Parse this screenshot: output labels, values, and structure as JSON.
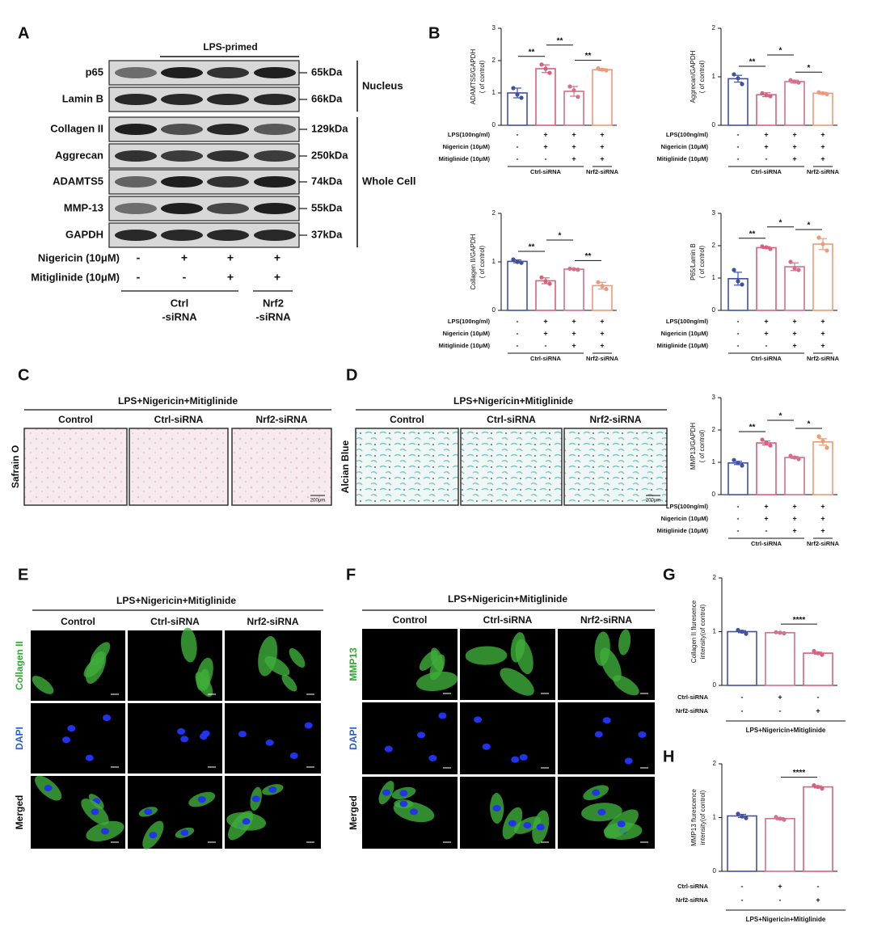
{
  "panel_labels": [
    "A",
    "B",
    "C",
    "D",
    "E",
    "F",
    "G",
    "H"
  ],
  "western_blot": {
    "header": "LPS-primed",
    "proteins": [
      "p65",
      "Lamin B",
      "Collagen II",
      "Aggrecan",
      "ADAMTS5",
      "MMP-13",
      "GAPDH"
    ],
    "sizes": [
      "65kDa",
      "66kDa",
      "129kDa",
      "250kDa",
      "74kDa",
      "55kDa",
      "37kDa"
    ],
    "compartments": [
      "Nucleus",
      "Whole Cell"
    ],
    "treatments": [
      {
        "label": "Nigericin (10μM)",
        "signs": [
          "-",
          "+",
          "+",
          "+"
        ]
      },
      {
        "label": "Mitiglinide (10μM)",
        "signs": [
          "-",
          "-",
          "+",
          "+"
        ]
      }
    ],
    "groups": [
      [
        "Ctrl",
        "-siRNA"
      ],
      [
        "Nrf2",
        "-siRNA"
      ]
    ]
  },
  "staining": [
    {
      "title": "LPS+Nigericin+Mitiglinide",
      "columns": [
        "Control",
        "Ctrl-siRNA",
        "Nrf2-siRNA"
      ],
      "rows": [
        "Safrain O"
      ],
      "scale_bar": "200μm"
    },
    {
      "title": "LPS+Nigericin+Mitiglinide",
      "columns": [
        "Control",
        "Ctrl-siRNA",
        "Nrf2-siRNA"
      ],
      "rows": [
        "Alcian Blue"
      ],
      "scale_bar": "200μm"
    },
    {
      "title": "LPS+Nigericin+Mitiglinide",
      "columns": [
        "Control",
        "Ctrl-siRNA",
        "Nrf2-siRNA"
      ],
      "rows": [
        "Collagen II",
        "DAPI",
        "Merged"
      ]
    },
    {
      "title": "LPS+Nigericin+Mitiglinide",
      "columns": [
        "Control",
        "Ctrl-siRNA",
        "Nrf2-siRNA"
      ],
      "rows": [
        "MMP13",
        "DAPI",
        "Merged"
      ]
    }
  ],
  "chart_data": [
    {
      "type": "bar",
      "ylabel": [
        "ADAMTS5/GAPDH",
        "( of control)"
      ],
      "ylim": [
        0,
        3
      ],
      "yticks": [
        0,
        1,
        2,
        3
      ],
      "values": [
        1.0,
        1.75,
        1.05,
        1.72
      ],
      "errors": [
        0.15,
        0.12,
        0.15,
        0.03
      ],
      "points": [
        [
          1.15,
          0.95,
          0.85
        ],
        [
          1.88,
          1.75,
          1.62
        ],
        [
          1.2,
          1.08,
          0.88
        ],
        [
          1.76,
          1.72,
          1.7
        ]
      ],
      "colors": [
        "#3f51a5",
        "#d9607e",
        "#d4708a",
        "#ee9a7a"
      ],
      "significance": [
        {
          "label": "**",
          "between": [
            0,
            1
          ]
        },
        {
          "label": "**",
          "between": [
            1,
            2
          ]
        },
        {
          "label": "**",
          "between": [
            2,
            3
          ]
        }
      ],
      "conditions": [
        {
          "label": "LPS(100ng/ml)",
          "signs": [
            "-",
            "+",
            "+",
            "+"
          ]
        },
        {
          "label": "Nigericin (10μM)",
          "signs": [
            "-",
            "+",
            "+",
            "+"
          ]
        },
        {
          "label": "Mitiglinide (10μM)",
          "signs": [
            "-",
            "-",
            "+",
            "+"
          ]
        }
      ],
      "groups": [
        "Ctrl-siRNA",
        "Nrf2-siRNA"
      ]
    },
    {
      "type": "bar",
      "ylabel": [
        "Aggrecan/GAPDH",
        "( of control)"
      ],
      "ylim": [
        0,
        2
      ],
      "yticks": [
        0,
        1,
        2
      ],
      "values": [
        0.96,
        0.63,
        0.9,
        0.66
      ],
      "errors": [
        0.07,
        0.04,
        0.03,
        0.02
      ],
      "points": [
        [
          1.05,
          0.97,
          0.85
        ],
        [
          0.66,
          0.62,
          0.6
        ],
        [
          0.93,
          0.9,
          0.88
        ],
        [
          0.68,
          0.66,
          0.64
        ]
      ],
      "colors": [
        "#3f51a5",
        "#d9607e",
        "#d4708a",
        "#ee9a7a"
      ],
      "significance": [
        {
          "label": "**",
          "between": [
            0,
            1
          ]
        },
        {
          "label": "*",
          "between": [
            1,
            2
          ]
        },
        {
          "label": "*",
          "between": [
            2,
            3
          ]
        }
      ],
      "conditions": [
        {
          "label": "LPS(100ng/ml)",
          "signs": [
            "-",
            "+",
            "+",
            "+"
          ]
        },
        {
          "label": "Nigericin (10μM)",
          "signs": [
            "-",
            "+",
            "+",
            "+"
          ]
        },
        {
          "label": "Mitiglinide (10μM)",
          "signs": [
            "-",
            "-",
            "+",
            "+"
          ]
        }
      ],
      "groups": [
        "Ctrl-siRNA",
        "Nrf2-siRNA"
      ]
    },
    {
      "type": "bar",
      "ylabel": [
        "Collagen II/GAPDH",
        "( of control)"
      ],
      "ylim": [
        0,
        2
      ],
      "yticks": [
        0,
        1,
        2
      ],
      "values": [
        1.01,
        0.61,
        0.85,
        0.51
      ],
      "errors": [
        0.03,
        0.06,
        0.01,
        0.07
      ],
      "points": [
        [
          1.05,
          1.0,
          0.98
        ],
        [
          0.68,
          0.6,
          0.55
        ],
        [
          0.86,
          0.85,
          0.84
        ],
        [
          0.58,
          0.5,
          0.44
        ]
      ],
      "colors": [
        "#3f51a5",
        "#d9607e",
        "#d4708a",
        "#ee9a7a"
      ],
      "significance": [
        {
          "label": "**",
          "between": [
            0,
            1
          ]
        },
        {
          "label": "*",
          "between": [
            1,
            2
          ]
        },
        {
          "label": "**",
          "between": [
            2,
            3
          ]
        }
      ],
      "conditions": [
        {
          "label": "LPS(100ng/ml)",
          "signs": [
            "-",
            "+",
            "+",
            "+"
          ]
        },
        {
          "label": "Nigericin (10μM)",
          "signs": [
            "-",
            "+",
            "+",
            "+"
          ]
        },
        {
          "label": "Mitiglinide (10μM)",
          "signs": [
            "-",
            "-",
            "+",
            "+"
          ]
        }
      ],
      "groups": [
        "Ctrl-siRNA",
        "Nrf2-siRNA"
      ]
    },
    {
      "type": "bar",
      "ylabel": [
        "P65/Lamin B",
        "( of control)"
      ],
      "ylim": [
        0,
        3
      ],
      "yticks": [
        0,
        1,
        2,
        3
      ],
      "values": [
        0.98,
        1.94,
        1.35,
        2.05
      ],
      "errors": [
        0.2,
        0.03,
        0.12,
        0.17
      ],
      "points": [
        [
          1.25,
          0.9,
          0.8
        ],
        [
          1.98,
          1.95,
          1.9
        ],
        [
          1.5,
          1.3,
          1.25
        ],
        [
          2.25,
          2.05,
          1.85
        ]
      ],
      "colors": [
        "#3f51a5",
        "#d9607e",
        "#d4708a",
        "#ee9a7a"
      ],
      "significance": [
        {
          "label": "**",
          "between": [
            0,
            1
          ]
        },
        {
          "label": "*",
          "between": [
            1,
            2
          ]
        },
        {
          "label": "*",
          "between": [
            2,
            3
          ]
        }
      ],
      "conditions": [
        {
          "label": "LPS(100ng/ml)",
          "signs": [
            "-",
            "+",
            "+",
            "+"
          ]
        },
        {
          "label": "Nigericin (10μM)",
          "signs": [
            "-",
            "+",
            "+",
            "+"
          ]
        },
        {
          "label": "Mitiglinide (10μM)",
          "signs": [
            "-",
            "-",
            "+",
            "+"
          ]
        }
      ],
      "groups": [
        "Ctrl-siRNA",
        "Nrf2-siRNA"
      ]
    },
    {
      "type": "bar",
      "ylabel": [
        "MMP13/GAPDH",
        "( of control)"
      ],
      "ylim": [
        0,
        3
      ],
      "yticks": [
        0,
        1,
        2,
        3
      ],
      "values": [
        0.98,
        1.6,
        1.15,
        1.63
      ],
      "errors": [
        0.05,
        0.06,
        0.03,
        0.1
      ],
      "points": [
        [
          1.07,
          0.98,
          0.9
        ],
        [
          1.7,
          1.6,
          1.52
        ],
        [
          1.2,
          1.15,
          1.1
        ],
        [
          1.8,
          1.65,
          1.45
        ]
      ],
      "colors": [
        "#3f51a5",
        "#d9607e",
        "#d4708a",
        "#ee9a7a"
      ],
      "significance": [
        {
          "label": "**",
          "between": [
            0,
            1
          ]
        },
        {
          "label": "*",
          "between": [
            1,
            2
          ]
        },
        {
          "label": "*",
          "between": [
            2,
            3
          ]
        }
      ],
      "conditions": [
        {
          "label": "LPS(100ng/ml)",
          "signs": [
            "-",
            "+",
            "+",
            "+"
          ]
        },
        {
          "label": "Nigericin (10μM)",
          "signs": [
            "-",
            "+",
            "+",
            "+"
          ]
        },
        {
          "label": "Mitiglinide (10μM)",
          "signs": [
            "-",
            "-",
            "+",
            "+"
          ]
        }
      ],
      "groups": [
        "Ctrl-siRNA",
        "Nrf2-siRNA"
      ]
    },
    {
      "type": "bar",
      "ylabel": [
        "Collagen II fluresence",
        "intensity(of control)"
      ],
      "ylim": [
        0,
        2
      ],
      "yticks": [
        0,
        1,
        2
      ],
      "values": [
        1.0,
        0.98,
        0.6
      ],
      "errors": [
        0.02,
        0.01,
        0.02
      ],
      "points": [
        [
          1.03,
          1.0,
          0.96
        ],
        [
          0.99,
          0.98,
          0.97
        ],
        [
          0.64,
          0.6,
          0.57
        ]
      ],
      "colors": [
        "#3f51a5",
        "#d4708a",
        "#d9607e"
      ],
      "significance": [
        {
          "label": "****",
          "between": [
            1,
            2
          ]
        }
      ],
      "conditions": [
        {
          "label": "Ctrl-siRNA",
          "signs": [
            "-",
            "+",
            "-"
          ]
        },
        {
          "label": "Nrf2-siRNA",
          "signs": [
            "-",
            "-",
            "+"
          ]
        }
      ],
      "footer": "LPS+Nigericin+Mitiglinide"
    },
    {
      "type": "bar",
      "ylabel": [
        "MMP13 flurescence",
        "intensity(of control)"
      ],
      "ylim": [
        0,
        2
      ],
      "yticks": [
        0,
        1,
        2
      ],
      "values": [
        1.03,
        0.98,
        1.57
      ],
      "errors": [
        0.03,
        0.02,
        0.02
      ],
      "points": [
        [
          1.07,
          1.02,
          0.99
        ],
        [
          1.01,
          0.98,
          0.96
        ],
        [
          1.6,
          1.57,
          1.54
        ]
      ],
      "colors": [
        "#3f51a5",
        "#d4708a",
        "#d9607e"
      ],
      "significance": [
        {
          "label": "****",
          "between": [
            1,
            2
          ]
        }
      ],
      "conditions": [
        {
          "label": "Ctrl-siRNA",
          "signs": [
            "-",
            "+",
            "-"
          ]
        },
        {
          "label": "Nrf2-siRNA",
          "signs": [
            "-",
            "-",
            "+"
          ]
        }
      ],
      "footer": "LPS+Nigericin+Mitiglinide"
    }
  ]
}
